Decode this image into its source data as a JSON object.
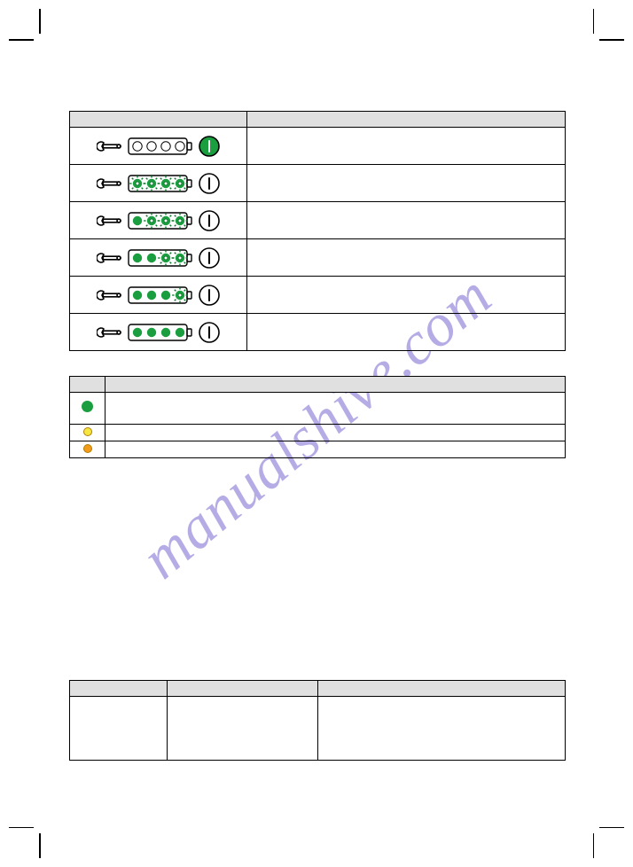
{
  "watermark_text": "manualshive.com",
  "colors": {
    "green": "#1a9e3f",
    "green_dark": "#0d7a2d",
    "yellow": "#f5e642",
    "orange": "#f59b1a",
    "grey_hdr": "#e0e0e0",
    "white": "#ffffff",
    "black": "#000000"
  },
  "table1": {
    "rows": [
      {
        "power_fill": "green",
        "power_bar": "white",
        "leds": [
          "empty",
          "empty",
          "empty",
          "empty"
        ]
      },
      {
        "power_fill": "white",
        "power_bar": "black",
        "leds": [
          "blink",
          "blink",
          "blink",
          "blink"
        ]
      },
      {
        "power_fill": "white",
        "power_bar": "black",
        "leds": [
          "solid",
          "blink",
          "blink",
          "blink"
        ]
      },
      {
        "power_fill": "white",
        "power_bar": "black",
        "leds": [
          "solid",
          "solid",
          "blink",
          "blink"
        ]
      },
      {
        "power_fill": "white",
        "power_bar": "black",
        "leds": [
          "solid",
          "solid",
          "solid",
          "blink"
        ]
      },
      {
        "power_fill": "white",
        "power_bar": "black",
        "leds": [
          "solid",
          "solid",
          "solid",
          "solid"
        ]
      }
    ]
  },
  "table2": {
    "rows": [
      {
        "color": "green",
        "label": ""
      },
      {
        "color": "yellow",
        "label": ""
      },
      {
        "color": "orange",
        "label": ""
      }
    ]
  }
}
